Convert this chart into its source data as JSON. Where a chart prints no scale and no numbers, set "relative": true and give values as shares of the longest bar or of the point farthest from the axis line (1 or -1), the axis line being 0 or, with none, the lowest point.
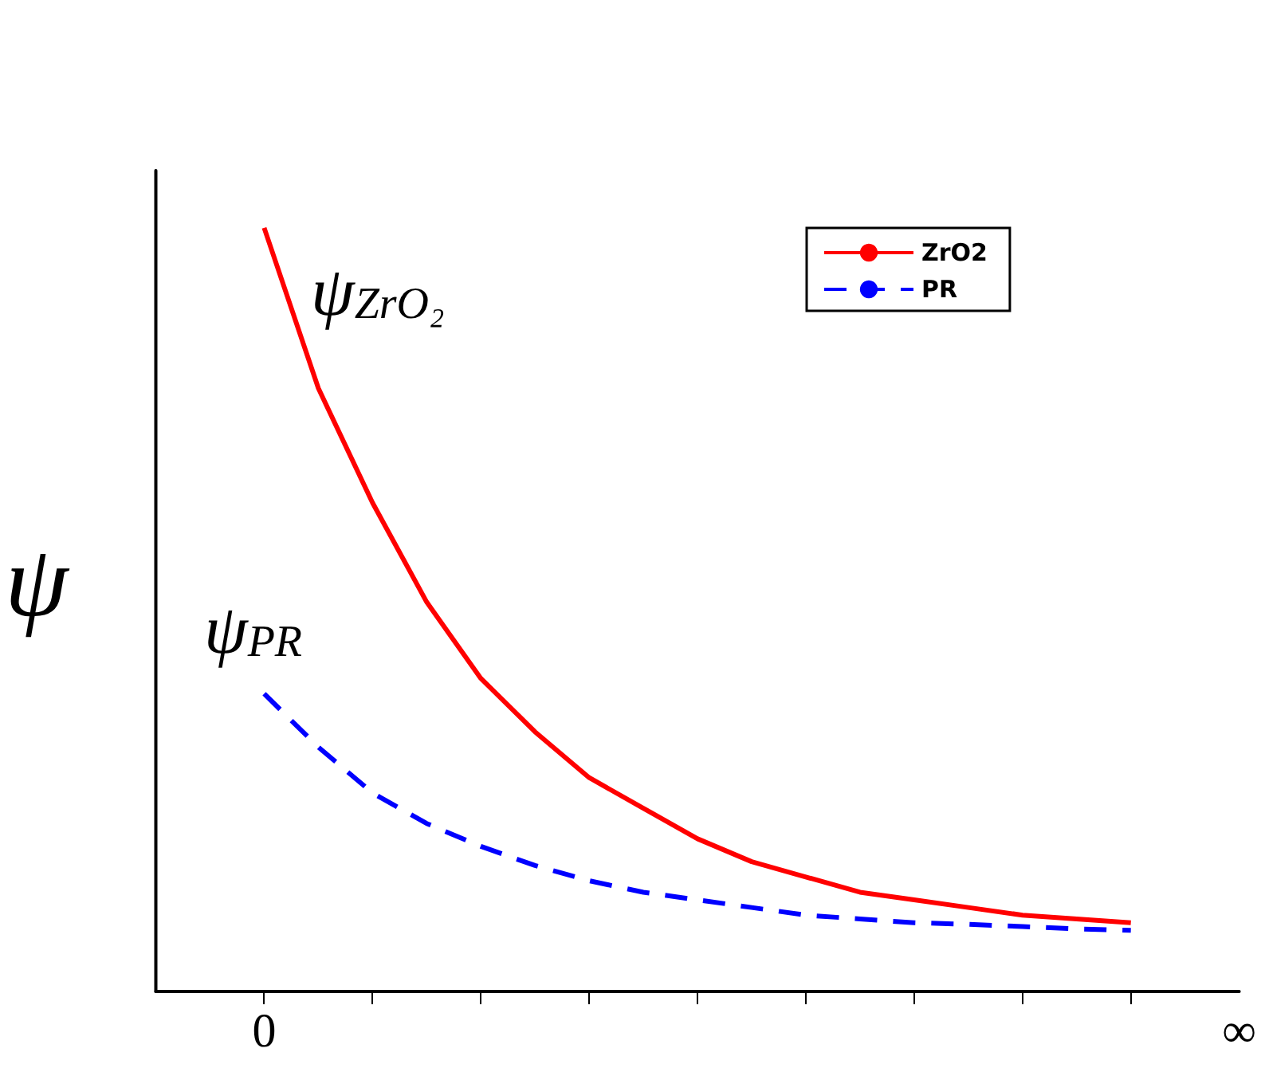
{
  "chart_data": {
    "type": "line",
    "relative": true,
    "ylabel": "ψ",
    "categories": [
      null,
      null,
      "0",
      null,
      null,
      null,
      null,
      null,
      null,
      null,
      null,
      null,
      null,
      null,
      null,
      null,
      null,
      null,
      null,
      null,
      "∞"
    ],
    "series": [
      {
        "name": "ZrO2",
        "color": "#ff0000",
        "line_style": "solid",
        "values": [
          null,
          null,
          1.0,
          0.79,
          0.64,
          0.51,
          0.41,
          0.34,
          0.28,
          0.24,
          0.2,
          0.17,
          0.15,
          0.13,
          0.12,
          0.11,
          0.1,
          0.095,
          0.09,
          null,
          null
        ]
      },
      {
        "name": "PR",
        "color": "#0000ff",
        "line_style": "dashed",
        "values": [
          null,
          null,
          0.39,
          0.32,
          0.26,
          0.22,
          0.19,
          0.165,
          0.145,
          0.13,
          0.12,
          0.11,
          0.1,
          0.095,
          0.09,
          0.088,
          0.085,
          0.082,
          0.08,
          null,
          null
        ]
      }
    ],
    "annotations": [
      "ψ$_{ZrO₂}$",
      "ψ$_{PR}$"
    ],
    "legend": "top right",
    "grid": false,
    "marker": "none"
  }
}
